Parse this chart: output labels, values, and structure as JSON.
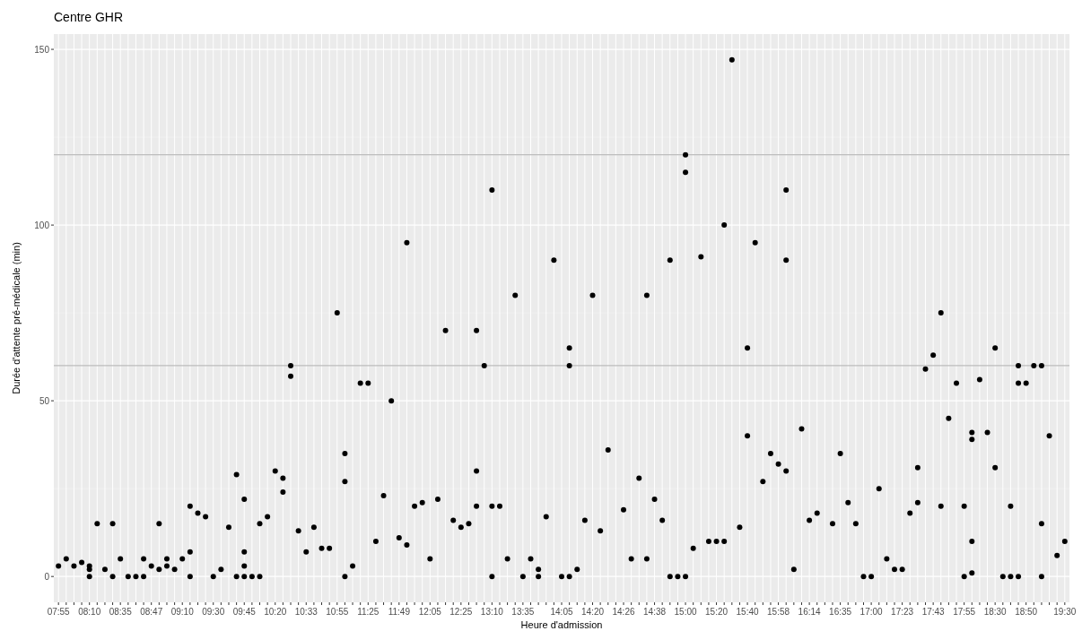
{
  "chart_data": {
    "type": "scatter",
    "title": "Centre GHR",
    "xlabel": "Heure d'admission",
    "ylabel": "Durée d'attente pré-médicale (min)",
    "categories": [
      "07:55",
      null,
      null,
      null,
      "08:10",
      null,
      null,
      null,
      "08:35",
      null,
      null,
      null,
      "08:47",
      null,
      null,
      null,
      "09:10",
      null,
      null,
      null,
      "09:30",
      null,
      null,
      null,
      "09:45",
      null,
      null,
      null,
      "10:20",
      null,
      null,
      null,
      "10:33",
      null,
      null,
      null,
      "10:55",
      null,
      null,
      null,
      "11:25",
      null,
      null,
      null,
      "11:49",
      null,
      null,
      null,
      "12:05",
      null,
      null,
      null,
      "12:25",
      null,
      null,
      null,
      "13:10",
      null,
      null,
      null,
      "13:35",
      null,
      null,
      null,
      null,
      "14:05",
      null,
      null,
      null,
      "14:20",
      null,
      null,
      null,
      "14:26",
      null,
      null,
      null,
      "14:38",
      null,
      null,
      null,
      "15:00",
      null,
      null,
      null,
      "15:20",
      null,
      null,
      null,
      "15:40",
      null,
      null,
      null,
      "15:58",
      null,
      null,
      null,
      "16:14",
      null,
      null,
      null,
      "16:35",
      null,
      null,
      null,
      "17:00",
      null,
      null,
      null,
      "17:23",
      null,
      null,
      null,
      "17:43",
      null,
      null,
      null,
      "17:55",
      null,
      null,
      null,
      "18:30",
      null,
      null,
      null,
      "18:50",
      null,
      null,
      null,
      null,
      "19:30"
    ],
    "series": [
      {
        "color": "#000000",
        "values": [
          3,
          5,
          3,
          4,
          3,
          15,
          2,
          15,
          5,
          0,
          0,
          5,
          3,
          15,
          5,
          2,
          5,
          20,
          18,
          17,
          0,
          2,
          14,
          29,
          22,
          0,
          15,
          17,
          30,
          28,
          60,
          13,
          7,
          14,
          8,
          8,
          75,
          35,
          3,
          55,
          55,
          10,
          23,
          50,
          11,
          95,
          20,
          21,
          5,
          22,
          70,
          16,
          14,
          15,
          70,
          60,
          110,
          20,
          5,
          80,
          0,
          5,
          2,
          17,
          90,
          0,
          65,
          2,
          16,
          80,
          13,
          36,
          null,
          19,
          5,
          28,
          80,
          22,
          16,
          90,
          0,
          120,
          8,
          91,
          10,
          10,
          100,
          147,
          14,
          65,
          95,
          27,
          35,
          32,
          110,
          2,
          42,
          16,
          18,
          null,
          15,
          35,
          21,
          15,
          0,
          0,
          25,
          5,
          2,
          2,
          18,
          31,
          59,
          63,
          75,
          45,
          55,
          20,
          41,
          56,
          41,
          65,
          0,
          20,
          60,
          55,
          60,
          60,
          40,
          6,
          10
        ]
      },
      {
        "color": "#000000",
        "values": [
          null,
          null,
          null,
          null,
          2,
          null,
          null,
          0,
          null,
          null,
          null,
          0,
          null,
          2,
          3,
          null,
          null,
          7,
          null,
          null,
          null,
          null,
          null,
          0,
          7,
          null,
          0,
          null,
          null,
          24,
          57,
          null,
          null,
          null,
          null,
          null,
          null,
          27,
          null,
          null,
          null,
          null,
          null,
          null,
          null,
          9,
          null,
          null,
          null,
          null,
          null,
          null,
          null,
          null,
          30,
          null,
          20,
          null,
          null,
          null,
          null,
          null,
          0,
          null,
          null,
          null,
          60,
          null,
          null,
          null,
          null,
          null,
          null,
          null,
          null,
          null,
          5,
          null,
          null,
          0,
          null,
          115,
          null,
          null,
          null,
          null,
          10,
          null,
          null,
          40,
          null,
          null,
          null,
          null,
          90,
          null,
          null,
          null,
          null,
          null,
          null,
          null,
          null,
          null,
          null,
          null,
          null,
          null,
          null,
          null,
          null,
          21,
          null,
          null,
          20,
          null,
          null,
          0,
          39,
          null,
          null,
          31,
          null,
          0,
          55,
          null,
          null,
          15,
          null,
          null,
          null
        ]
      },
      {
        "color": "#000000",
        "values": [
          null,
          null,
          null,
          null,
          0,
          null,
          null,
          null,
          null,
          null,
          null,
          null,
          null,
          null,
          null,
          null,
          null,
          0,
          null,
          null,
          null,
          null,
          null,
          null,
          3,
          null,
          null,
          null,
          null,
          null,
          null,
          null,
          null,
          null,
          null,
          null,
          null,
          0,
          null,
          null,
          null,
          null,
          null,
          null,
          null,
          null,
          null,
          null,
          null,
          null,
          null,
          null,
          null,
          null,
          20,
          null,
          0,
          null,
          null,
          null,
          null,
          null,
          null,
          null,
          null,
          null,
          0,
          null,
          null,
          null,
          null,
          null,
          null,
          null,
          null,
          null,
          null,
          null,
          null,
          null,
          null,
          0,
          null,
          null,
          null,
          null,
          null,
          null,
          null,
          null,
          null,
          null,
          null,
          null,
          30,
          null,
          null,
          null,
          null,
          null,
          null,
          null,
          null,
          null,
          null,
          null,
          null,
          null,
          null,
          null,
          null,
          null,
          null,
          null,
          null,
          null,
          null,
          null,
          10,
          null,
          null,
          null,
          null,
          null,
          0,
          null,
          null,
          0,
          null,
          null,
          null
        ]
      },
      {
        "color": "#000000",
        "values": [
          null,
          null,
          null,
          null,
          null,
          null,
          null,
          null,
          null,
          null,
          null,
          null,
          null,
          null,
          null,
          null,
          null,
          null,
          null,
          null,
          null,
          null,
          null,
          null,
          0,
          null,
          null,
          null,
          null,
          null,
          null,
          null,
          null,
          null,
          null,
          null,
          null,
          null,
          null,
          null,
          null,
          null,
          null,
          null,
          null,
          null,
          null,
          null,
          null,
          null,
          null,
          null,
          null,
          null,
          null,
          null,
          null,
          null,
          null,
          null,
          null,
          null,
          null,
          null,
          null,
          null,
          null,
          null,
          null,
          null,
          null,
          null,
          null,
          null,
          null,
          null,
          null,
          null,
          null,
          null,
          null,
          null,
          null,
          null,
          null,
          null,
          null,
          null,
          null,
          null,
          null,
          null,
          null,
          null,
          null,
          null,
          null,
          null,
          null,
          null,
          null,
          null,
          null,
          null,
          null,
          null,
          null,
          null,
          null,
          null,
          null,
          null,
          null,
          null,
          null,
          null,
          null,
          null,
          1,
          null,
          null,
          null,
          null,
          null,
          null,
          null,
          null,
          null,
          null,
          null,
          null
        ]
      }
    ],
    "ylim": [
      -7.35,
      154.35
    ],
    "yticks": [
      0,
      50,
      100,
      150
    ],
    "grid": true,
    "marker": "circle",
    "ref_lines": [
      {
        "axis": "y",
        "value": 60,
        "color": "#bdbdbd"
      },
      {
        "axis": "y",
        "value": 120,
        "color": "#bdbdbd"
      }
    ]
  }
}
